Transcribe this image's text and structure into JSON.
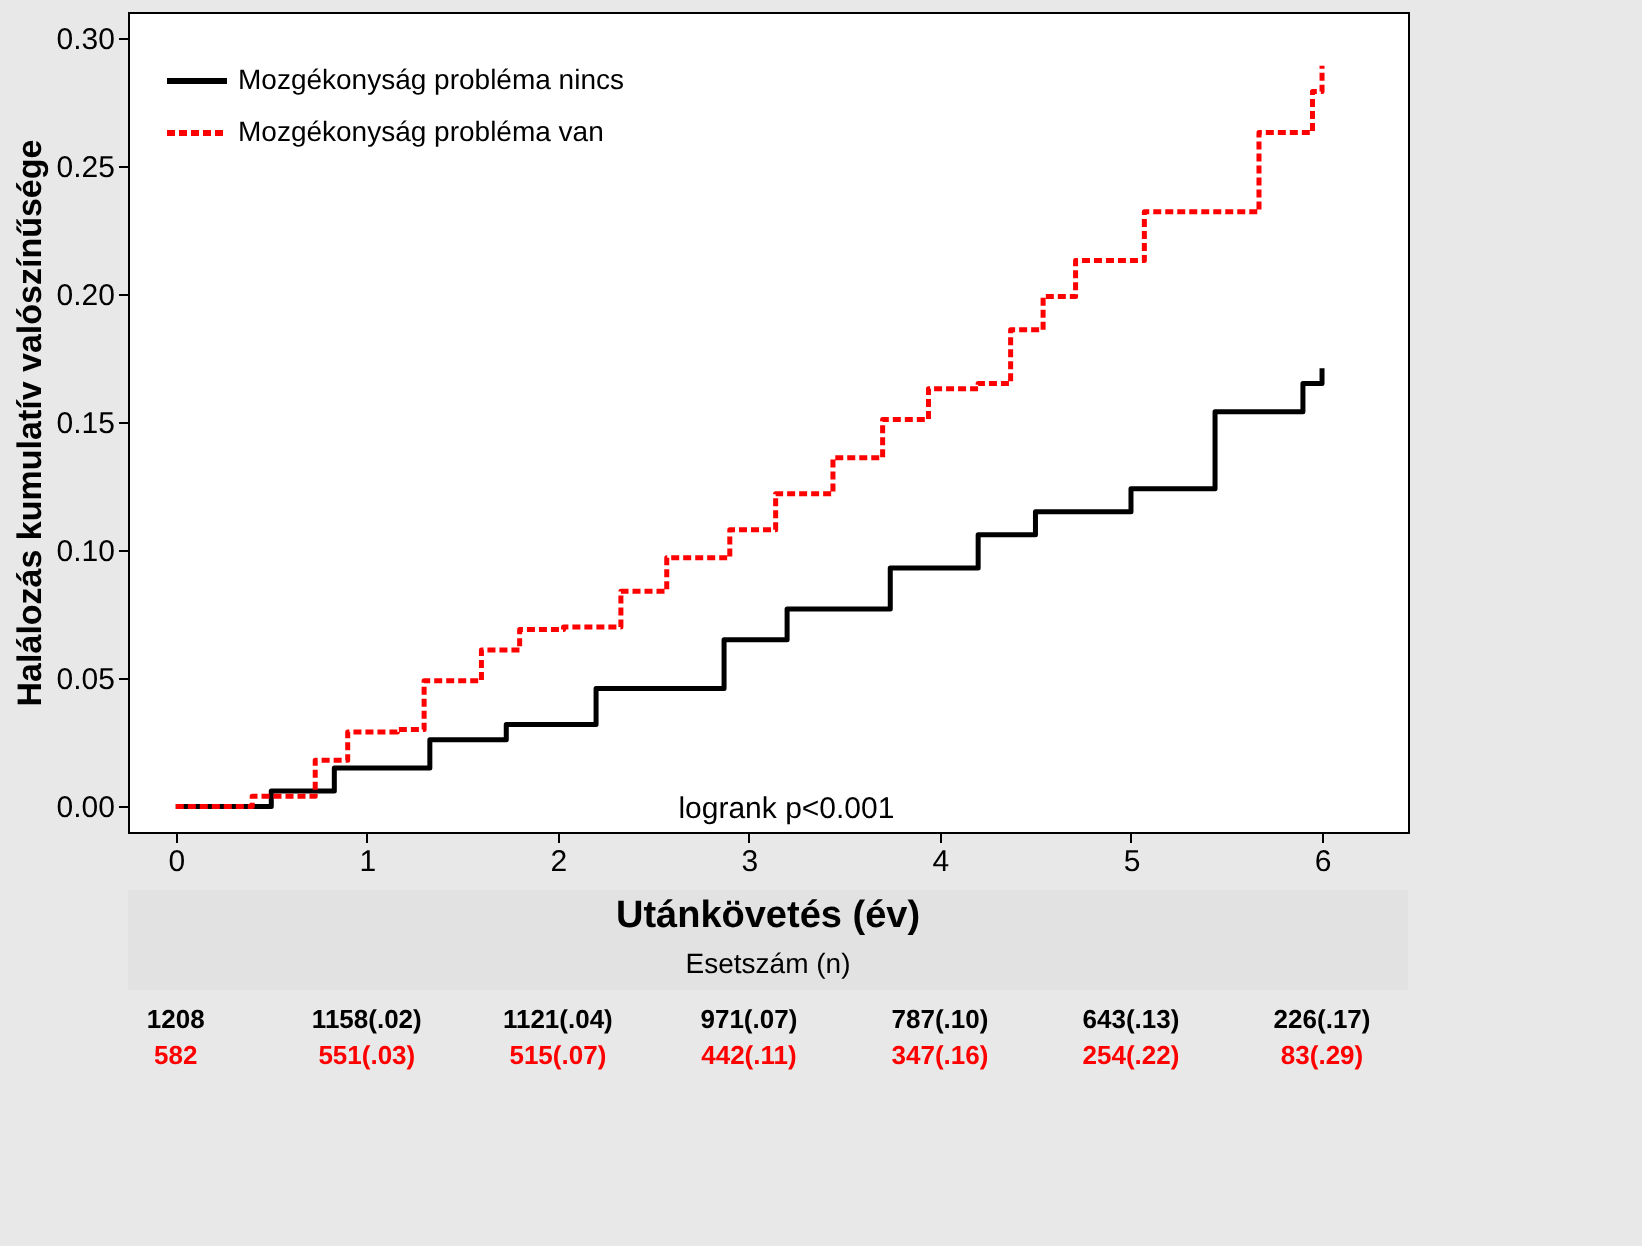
{
  "chart_data": {
    "type": "step",
    "xlabel": "Utánkövetés (év)",
    "ylabel": "Halálozás kumulatív valószínűsége",
    "xlim": [
      -0.25,
      6.45
    ],
    "ylim": [
      -0.01,
      0.31
    ],
    "xticks": [
      0,
      1,
      2,
      3,
      4,
      5,
      6
    ],
    "yticks": [
      {
        "value": 0,
        "label": "0.00"
      },
      {
        "value": 0.05,
        "label": "0.05"
      },
      {
        "value": 0.1,
        "label": "0.10"
      },
      {
        "value": 0.15,
        "label": "0.15"
      },
      {
        "value": 0.2,
        "label": "0.20"
      },
      {
        "value": 0.25,
        "label": "0.25"
      },
      {
        "value": 0.3,
        "label": "0.30"
      }
    ],
    "legend": "top left",
    "grid": false,
    "series": [
      {
        "name": "Mozgékonyság probléma nincs",
        "color": "#000000",
        "line_style": "solid",
        "x": [
          0,
          0.5,
          0.83,
          1.33,
          1.73,
          2.2,
          2.87,
          3.2,
          3.74,
          4.2,
          4.5,
          5.0,
          5.44,
          5.9,
          6.0
        ],
        "values": [
          0,
          0.006,
          0.015,
          0.026,
          0.032,
          0.046,
          0.065,
          0.077,
          0.093,
          0.106,
          0.115,
          0.124,
          0.154,
          0.165,
          0.171
        ]
      },
      {
        "name": "Mozgékonyság probléma van",
        "color": "#ff0000",
        "line_style": "dashed",
        "x": [
          0,
          0.4,
          0.73,
          0.9,
          1.16,
          1.3,
          1.6,
          1.8,
          2.03,
          2.33,
          2.57,
          2.9,
          3.14,
          3.44,
          3.7,
          3.94,
          4.2,
          4.37,
          4.54,
          4.71,
          5.07,
          5.37,
          5.67,
          5.89,
          5.95,
          6.0
        ],
        "values": [
          0,
          0.004,
          0.018,
          0.029,
          0.03,
          0.049,
          0.061,
          0.069,
          0.07,
          0.084,
          0.097,
          0.108,
          0.122,
          0.136,
          0.151,
          0.163,
          0.165,
          0.186,
          0.199,
          0.213,
          0.232,
          0.232,
          0.263,
          0.263,
          0.279,
          0.289
        ]
      }
    ],
    "annotations": [
      "logrank p<0.001",
      "Esetszám (n)",
      "1208",
      "1158(.02)",
      "1121(.04)",
      "971(.07)",
      "787(.10)",
      "643(.13)",
      "226(.17)",
      "582",
      "551(.03)",
      "515(.07)",
      "442(.11)",
      "347(.16)",
      "254(.22)",
      "83(.29)"
    ]
  }
}
